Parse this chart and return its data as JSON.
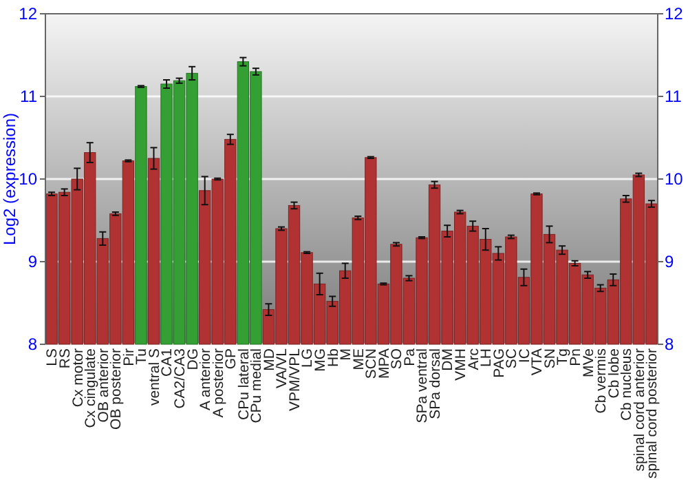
{
  "chart_data": {
    "type": "bar",
    "ylabel": "Log2 (expression)",
    "categories": [
      "LS",
      "RS",
      "Cx motor",
      "Cx cingulate",
      "OB anterior",
      "OB posterior",
      "Pir",
      "Tu",
      "ventral S",
      "CA1",
      "CA2/CA3",
      "DG",
      "A anterior",
      "A posterior",
      "GP",
      "CPu lateral",
      "CPu medial",
      "MD",
      "VA/VL",
      "VPM/VPL",
      "LG",
      "MG",
      "Hb",
      "M",
      "ME",
      "SCN",
      "MPA",
      "SO",
      "Pa",
      "SPa ventral",
      "SPa dorsal",
      "DM",
      "VMH",
      "Arc",
      "LH",
      "PAG",
      "SC",
      "IC",
      "VTA",
      "SN",
      "Tg",
      "Pn",
      "MVe",
      "Cb vermis",
      "Cb lobe",
      "Cb nucleus",
      "spinal cord anterior",
      "spinal cord posterior"
    ],
    "values": [
      9.82,
      9.84,
      10.0,
      10.32,
      9.28,
      9.58,
      10.22,
      11.12,
      10.25,
      11.15,
      11.19,
      11.28,
      9.86,
      10.0,
      10.48,
      11.42,
      11.3,
      8.42,
      9.4,
      9.68,
      9.11,
      8.73,
      8.52,
      8.89,
      9.53,
      10.26,
      8.73,
      9.21,
      8.8,
      9.29,
      9.93,
      9.37,
      9.6,
      9.43,
      9.27,
      9.1,
      9.3,
      8.81,
      9.82,
      9.33,
      9.14,
      8.98,
      8.84,
      8.68,
      8.78,
      9.76,
      10.05,
      9.7
    ],
    "errors": [
      0.02,
      0.04,
      0.13,
      0.12,
      0.08,
      0.02,
      0.01,
      0.01,
      0.13,
      0.05,
      0.03,
      0.08,
      0.17,
      0.01,
      0.06,
      0.05,
      0.04,
      0.07,
      0.02,
      0.04,
      0.01,
      0.13,
      0.06,
      0.09,
      0.02,
      0.01,
      0.01,
      0.02,
      0.03,
      0.01,
      0.04,
      0.07,
      0.02,
      0.06,
      0.13,
      0.08,
      0.02,
      0.1,
      0.01,
      0.1,
      0.05,
      0.03,
      0.04,
      0.04,
      0.07,
      0.04,
      0.02,
      0.04
    ],
    "colors": [
      "#b03232",
      "#b03232",
      "#b03232",
      "#b03232",
      "#b03232",
      "#b03232",
      "#b03232",
      "#34a034",
      "#b03232",
      "#34a034",
      "#34a034",
      "#34a034",
      "#b03232",
      "#b03232",
      "#b03232",
      "#34a034",
      "#34a034",
      "#b03232",
      "#b03232",
      "#b03232",
      "#b03232",
      "#b03232",
      "#b03232",
      "#b03232",
      "#b03232",
      "#b03232",
      "#b03232",
      "#b03232",
      "#b03232",
      "#b03232",
      "#b03232",
      "#b03232",
      "#b03232",
      "#b03232",
      "#b03232",
      "#b03232",
      "#b03232",
      "#b03232",
      "#b03232",
      "#b03232",
      "#b03232",
      "#b03232",
      "#b03232",
      "#b03232",
      "#b03232",
      "#b03232",
      "#b03232",
      "#b03232"
    ],
    "ylim": [
      8,
      12
    ],
    "yticks": [
      8,
      9,
      10,
      11,
      12
    ],
    "y2lim": [
      8,
      12
    ],
    "y2ticks": [
      8,
      9,
      10,
      11,
      12
    ],
    "grid": "y"
  }
}
